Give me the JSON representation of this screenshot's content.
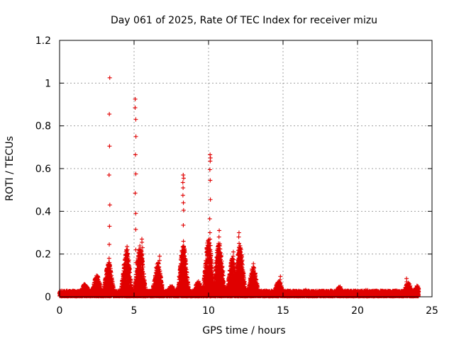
{
  "chart_data": {
    "type": "scatter",
    "title": "Day 061 of 2025, Rate Of TEC Index for receiver mizu",
    "xlabel": "GPS time / hours",
    "ylabel": "ROTI / TECUs",
    "xlim": [
      0,
      25
    ],
    "ylim": [
      0,
      1.2
    ],
    "xticks": [
      0,
      5,
      10,
      15,
      20,
      25
    ],
    "xtick_labels": [
      "0",
      "5",
      "10",
      "15",
      "20",
      "25"
    ],
    "yticks": [
      0,
      0.2,
      0.4,
      0.6,
      0.8,
      1,
      1.2
    ],
    "ytick_labels": [
      "0",
      "0.2",
      "0.4",
      "0.6",
      "0.8",
      "1",
      "1.2"
    ],
    "grid": true,
    "marker": "+",
    "series": [
      {
        "name": "ROTI",
        "color": "#e00000",
        "peaks": [
          {
            "x": 3.35,
            "y": [
              1.025,
              0.855,
              0.705,
              0.57,
              0.43,
              0.33,
              0.245,
              0.18,
              0.16,
              0.14
            ]
          },
          {
            "x": 5.1,
            "y": [
              0.925,
              0.885,
              0.83,
              0.75,
              0.665,
              0.575,
              0.485,
              0.39,
              0.315,
              0.22,
              0.16
            ]
          },
          {
            "x": 8.3,
            "y": [
              0.57,
              0.555,
              0.535,
              0.51,
              0.475,
              0.44,
              0.405,
              0.335,
              0.26,
              0.23,
              0.2
            ]
          },
          {
            "x": 10.1,
            "y": [
              0.665,
              0.65,
              0.635,
              0.595,
              0.545,
              0.455,
              0.365,
              0.3,
              0.27,
              0.24,
              0.2
            ]
          },
          {
            "x": 4.55,
            "y": [
              0.235,
              0.22,
              0.2,
              0.17
            ]
          },
          {
            "x": 5.55,
            "y": [
              0.27,
              0.255,
              0.23,
              0.2,
              0.17
            ]
          },
          {
            "x": 6.7,
            "y": [
              0.19,
              0.17,
              0.14,
              0.11
            ]
          },
          {
            "x": 10.7,
            "y": [
              0.31,
              0.28,
              0.24,
              0.2,
              0.16
            ]
          },
          {
            "x": 11.0,
            "y": [
              0.12,
              0.1
            ]
          },
          {
            "x": 11.65,
            "y": [
              0.21,
              0.19,
              0.15
            ]
          },
          {
            "x": 12.05,
            "y": [
              0.3,
              0.28,
              0.25,
              0.22,
              0.18,
              0.14
            ]
          },
          {
            "x": 13.0,
            "y": [
              0.155,
              0.14,
              0.12,
              0.1
            ]
          },
          {
            "x": 14.8,
            "y": [
              0.095,
              0.08,
              0.065
            ]
          },
          {
            "x": 23.3,
            "y": [
              0.085,
              0.07
            ]
          }
        ],
        "bumps": [
          {
            "x": 1.7,
            "h": 0.06
          },
          {
            "x": 2.5,
            "h": 0.1
          },
          {
            "x": 3.3,
            "h": 0.16
          },
          {
            "x": 4.5,
            "h": 0.22
          },
          {
            "x": 5.4,
            "h": 0.24
          },
          {
            "x": 6.6,
            "h": 0.16
          },
          {
            "x": 7.5,
            "h": 0.05
          },
          {
            "x": 8.3,
            "h": 0.24
          },
          {
            "x": 9.3,
            "h": 0.07
          },
          {
            "x": 10.0,
            "h": 0.27
          },
          {
            "x": 10.7,
            "h": 0.26
          },
          {
            "x": 11.6,
            "h": 0.18
          },
          {
            "x": 12.1,
            "h": 0.24
          },
          {
            "x": 13.0,
            "h": 0.14
          },
          {
            "x": 14.7,
            "h": 0.07
          },
          {
            "x": 16.5,
            "h": 0.03
          },
          {
            "x": 18.8,
            "h": 0.045
          },
          {
            "x": 20.6,
            "h": 0.03
          },
          {
            "x": 23.4,
            "h": 0.065
          },
          {
            "x": 24.0,
            "h": 0.05
          }
        ],
        "baseline": 0.025,
        "x_range": [
          0,
          24.1
        ]
      }
    ]
  }
}
